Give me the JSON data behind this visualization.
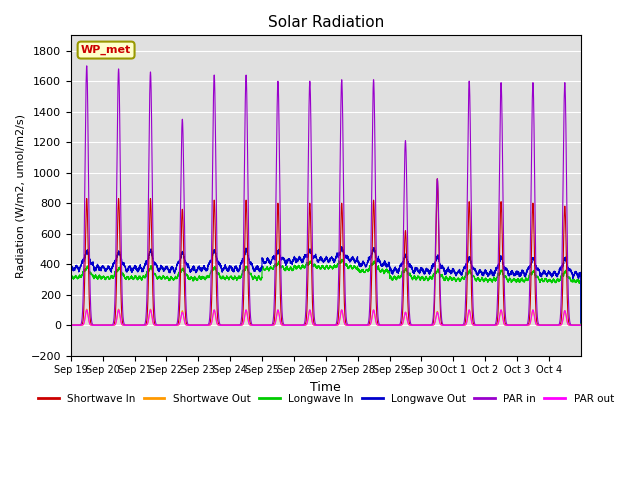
{
  "title": "Solar Radiation",
  "xlabel": "Time",
  "ylabel": "Radiation (W/m2, umol/m2/s)",
  "ylim": [
    -200,
    1900
  ],
  "yticks": [
    -200,
    0,
    200,
    400,
    600,
    800,
    1000,
    1200,
    1400,
    1600,
    1800
  ],
  "background_color": "#e0e0e0",
  "station_label": "WP_met",
  "n_days": 16,
  "day_labels": [
    "Sep 19",
    "Sep 20",
    "Sep 21",
    "Sep 22",
    "Sep 23",
    "Sep 24",
    "Sep 25",
    "Sep 26",
    "Sep 27",
    "Sep 28",
    "Sep 29",
    "Sep 30",
    "Oct 1",
    "Oct 2",
    "Oct 3",
    "Oct 4"
  ],
  "series": {
    "shortwave_in": {
      "color": "#cc0000",
      "label": "Shortwave In"
    },
    "shortwave_out": {
      "color": "#ff9900",
      "label": "Shortwave Out"
    },
    "longwave_in": {
      "color": "#00cc00",
      "label": "Longwave In"
    },
    "longwave_out": {
      "color": "#0000cc",
      "label": "Longwave Out"
    },
    "par_in": {
      "color": "#9900cc",
      "label": "PAR in"
    },
    "par_out": {
      "color": "#ff00ff",
      "label": "PAR out"
    }
  },
  "sw_in_peaks": [
    830,
    830,
    830,
    760,
    820,
    820,
    800,
    800,
    800,
    820,
    620,
    960,
    810,
    810,
    800,
    780
  ],
  "par_in_peaks": [
    1700,
    1680,
    1660,
    1350,
    1640,
    1640,
    1600,
    1600,
    1610,
    1610,
    1210,
    960,
    1600,
    1590,
    1590,
    1590
  ],
  "par_out_peaks": [
    100,
    100,
    100,
    85,
    100,
    100,
    100,
    100,
    100,
    100,
    85,
    85,
    100,
    100,
    100,
    95
  ],
  "sw_out_peaks": [
    105,
    105,
    105,
    95,
    100,
    100,
    100,
    100,
    100,
    100,
    85,
    90,
    100,
    100,
    100,
    95
  ],
  "lw_in_base": [
    315,
    310,
    310,
    305,
    310,
    310,
    370,
    380,
    380,
    355,
    310,
    305,
    300,
    295,
    295,
    290
  ],
  "lw_out_base": [
    375,
    370,
    370,
    365,
    370,
    370,
    420,
    430,
    430,
    400,
    360,
    355,
    345,
    340,
    340,
    335
  ],
  "lw_in_peak_delta": [
    60,
    60,
    65,
    60,
    65,
    65,
    30,
    30,
    40,
    55,
    55,
    50,
    50,
    55,
    55,
    55
  ],
  "lw_out_peak_delta": [
    100,
    100,
    105,
    100,
    110,
    110,
    50,
    50,
    60,
    90,
    90,
    85,
    85,
    90,
    90,
    90
  ]
}
